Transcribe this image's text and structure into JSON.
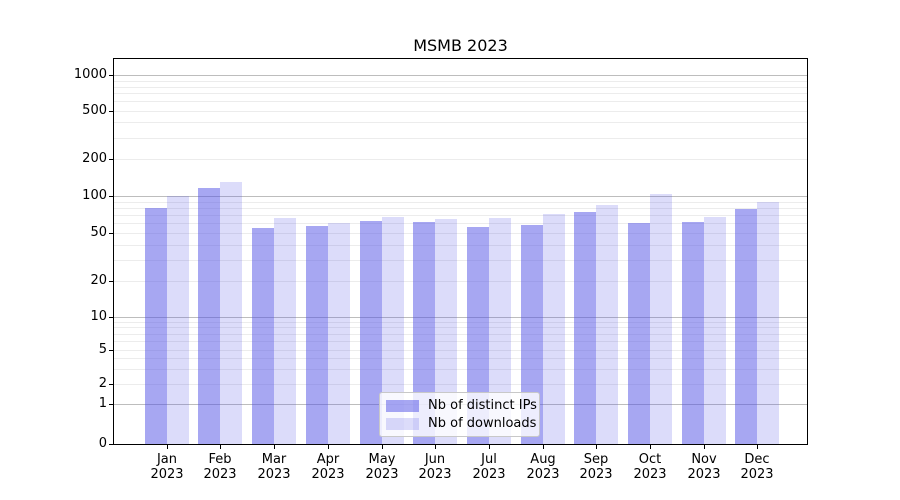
{
  "chart_data": {
    "type": "bar",
    "title": "MSMB 2023",
    "categories": [
      "Jan",
      "Feb",
      "Mar",
      "Apr",
      "May",
      "Jun",
      "Jul",
      "Aug",
      "Sep",
      "Oct",
      "Nov",
      "Dec"
    ],
    "year_label": "2023",
    "series": [
      {
        "name": "Nb of distinct IPs",
        "color": "rgba(80,80,230,0.5)",
        "color_hex": "#a8a8f2",
        "values": [
          80,
          116,
          55,
          57,
          63,
          61,
          56,
          58,
          74,
          60,
          61,
          78
        ]
      },
      {
        "name": "Nb of downloads",
        "color": "rgba(80,80,230,0.2)",
        "color_hex": "#dcdcfa",
        "values": [
          100,
          130,
          66,
          60,
          67,
          65,
          66,
          71,
          85,
          103,
          68,
          90
        ]
      }
    ],
    "y_ticks": [
      0,
      1,
      2,
      5,
      10,
      20,
      50,
      100,
      200,
      500,
      1000
    ],
    "ylim": [
      0,
      1350
    ],
    "yscale": "symlog",
    "xlabel": "",
    "ylabel": "",
    "grid": "horizontal, major and minor",
    "legend_position": "lower center"
  }
}
